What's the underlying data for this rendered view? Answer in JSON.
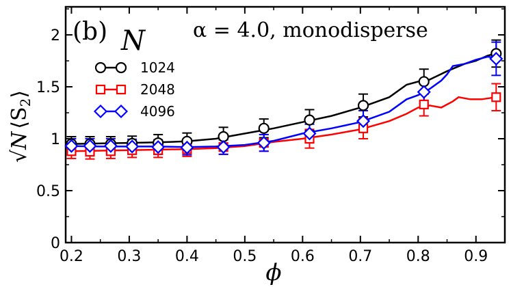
{
  "chart_data": {
    "type": "line",
    "panel_label": "(b)",
    "annotation": "α = 4.0,  monodisperse",
    "legend_title": "N",
    "legend_position": "top-left",
    "xlabel": "ϕ",
    "ylabel_prefix": "√N",
    "ylabel_main": "⟨S",
    "ylabel_sub": "2",
    "ylabel_suffix": "⟩",
    "xlim": [
      0.19,
      0.95
    ],
    "ylim": [
      0,
      2.27
    ],
    "xticks": [
      0.2,
      0.3,
      0.4,
      0.5,
      0.6,
      0.7,
      0.8,
      0.9
    ],
    "xtick_labels": [
      "0.2",
      "0.3",
      "0.4",
      "0.5",
      "0.6",
      "0.7",
      "0.8",
      "0.9"
    ],
    "yticks": [
      0,
      0.5,
      1,
      1.5,
      2
    ],
    "ytick_labels": [
      "0",
      "0.5",
      "1",
      "1.5",
      "2"
    ],
    "grid": false,
    "series": [
      {
        "name": "1024",
        "color": "#000000",
        "marker": "circle",
        "line": [
          [
            0.2,
            0.95
          ],
          [
            0.25,
            0.955
          ],
          [
            0.3,
            0.96
          ],
          [
            0.35,
            0.965
          ],
          [
            0.4,
            0.975
          ],
          [
            0.45,
            1.0
          ],
          [
            0.5,
            1.05
          ],
          [
            0.55,
            1.1
          ],
          [
            0.6,
            1.16
          ],
          [
            0.65,
            1.22
          ],
          [
            0.7,
            1.3
          ],
          [
            0.75,
            1.4
          ],
          [
            0.78,
            1.52
          ],
          [
            0.8,
            1.55
          ],
          [
            0.82,
            1.57
          ],
          [
            0.85,
            1.65
          ],
          [
            0.88,
            1.72
          ],
          [
            0.9,
            1.75
          ],
          [
            0.92,
            1.8
          ],
          [
            0.935,
            1.82
          ]
        ],
        "points": [
          {
            "x": 0.2,
            "y": 0.95,
            "err": 0.07
          },
          {
            "x": 0.232,
            "y": 0.95,
            "err": 0.07
          },
          {
            "x": 0.268,
            "y": 0.95,
            "err": 0.07
          },
          {
            "x": 0.305,
            "y": 0.955,
            "err": 0.07
          },
          {
            "x": 0.35,
            "y": 0.96,
            "err": 0.08
          },
          {
            "x": 0.4,
            "y": 0.975,
            "err": 0.08
          },
          {
            "x": 0.463,
            "y": 1.02,
            "err": 0.09
          },
          {
            "x": 0.533,
            "y": 1.1,
            "err": 0.09
          },
          {
            "x": 0.612,
            "y": 1.18,
            "err": 0.1
          },
          {
            "x": 0.705,
            "y": 1.32,
            "err": 0.11
          },
          {
            "x": 0.81,
            "y": 1.55,
            "err": 0.12
          },
          {
            "x": 0.935,
            "y": 1.82,
            "err": 0.13
          }
        ]
      },
      {
        "name": "2048",
        "color": "#ff0000",
        "marker": "square",
        "line": [
          [
            0.2,
            0.88
          ],
          [
            0.25,
            0.885
          ],
          [
            0.3,
            0.89
          ],
          [
            0.35,
            0.895
          ],
          [
            0.4,
            0.9
          ],
          [
            0.45,
            0.91
          ],
          [
            0.5,
            0.93
          ],
          [
            0.55,
            0.97
          ],
          [
            0.6,
            1.0
          ],
          [
            0.65,
            1.04
          ],
          [
            0.7,
            1.09
          ],
          [
            0.75,
            1.17
          ],
          [
            0.78,
            1.24
          ],
          [
            0.8,
            1.3
          ],
          [
            0.82,
            1.32
          ],
          [
            0.84,
            1.3
          ],
          [
            0.86,
            1.36
          ],
          [
            0.87,
            1.4
          ],
          [
            0.89,
            1.38
          ],
          [
            0.91,
            1.38
          ],
          [
            0.935,
            1.4
          ]
        ],
        "points": [
          {
            "x": 0.2,
            "y": 0.88,
            "err": 0.07
          },
          {
            "x": 0.232,
            "y": 0.875,
            "err": 0.07
          },
          {
            "x": 0.268,
            "y": 0.88,
            "err": 0.07
          },
          {
            "x": 0.305,
            "y": 0.89,
            "err": 0.07
          },
          {
            "x": 0.35,
            "y": 0.89,
            "err": 0.07
          },
          {
            "x": 0.4,
            "y": 0.9,
            "err": 0.07
          },
          {
            "x": 0.463,
            "y": 0.92,
            "err": 0.07
          },
          {
            "x": 0.533,
            "y": 0.96,
            "err": 0.08
          },
          {
            "x": 0.612,
            "y": 1.0,
            "err": 0.09
          },
          {
            "x": 0.705,
            "y": 1.1,
            "err": 0.1
          },
          {
            "x": 0.81,
            "y": 1.33,
            "err": 0.11
          },
          {
            "x": 0.935,
            "y": 1.4,
            "err": 0.13
          }
        ]
      },
      {
        "name": "4096",
        "color": "#0000ff",
        "marker": "diamond",
        "line": [
          [
            0.2,
            0.93
          ],
          [
            0.25,
            0.925
          ],
          [
            0.3,
            0.925
          ],
          [
            0.35,
            0.925
          ],
          [
            0.4,
            0.92
          ],
          [
            0.45,
            0.925
          ],
          [
            0.5,
            0.94
          ],
          [
            0.55,
            0.98
          ],
          [
            0.6,
            1.05
          ],
          [
            0.65,
            1.1
          ],
          [
            0.7,
            1.16
          ],
          [
            0.75,
            1.26
          ],
          [
            0.78,
            1.38
          ],
          [
            0.8,
            1.42
          ],
          [
            0.82,
            1.48
          ],
          [
            0.84,
            1.56
          ],
          [
            0.85,
            1.62
          ],
          [
            0.86,
            1.7
          ],
          [
            0.88,
            1.72
          ],
          [
            0.9,
            1.76
          ],
          [
            0.92,
            1.79
          ],
          [
            0.935,
            1.78
          ]
        ],
        "points": [
          {
            "x": 0.2,
            "y": 0.93,
            "err": 0.07
          },
          {
            "x": 0.232,
            "y": 0.93,
            "err": 0.07
          },
          {
            "x": 0.268,
            "y": 0.93,
            "err": 0.07
          },
          {
            "x": 0.305,
            "y": 0.925,
            "err": 0.07
          },
          {
            "x": 0.35,
            "y": 0.92,
            "err": 0.07
          },
          {
            "x": 0.4,
            "y": 0.915,
            "err": 0.07
          },
          {
            "x": 0.463,
            "y": 0.92,
            "err": 0.07
          },
          {
            "x": 0.533,
            "y": 0.96,
            "err": 0.08
          },
          {
            "x": 0.612,
            "y": 1.05,
            "err": 0.09
          },
          {
            "x": 0.705,
            "y": 1.17,
            "err": 0.1
          },
          {
            "x": 0.81,
            "y": 1.45,
            "err": 0.11
          },
          {
            "x": 0.935,
            "y": 1.77,
            "err": 0.16
          }
        ]
      }
    ]
  }
}
